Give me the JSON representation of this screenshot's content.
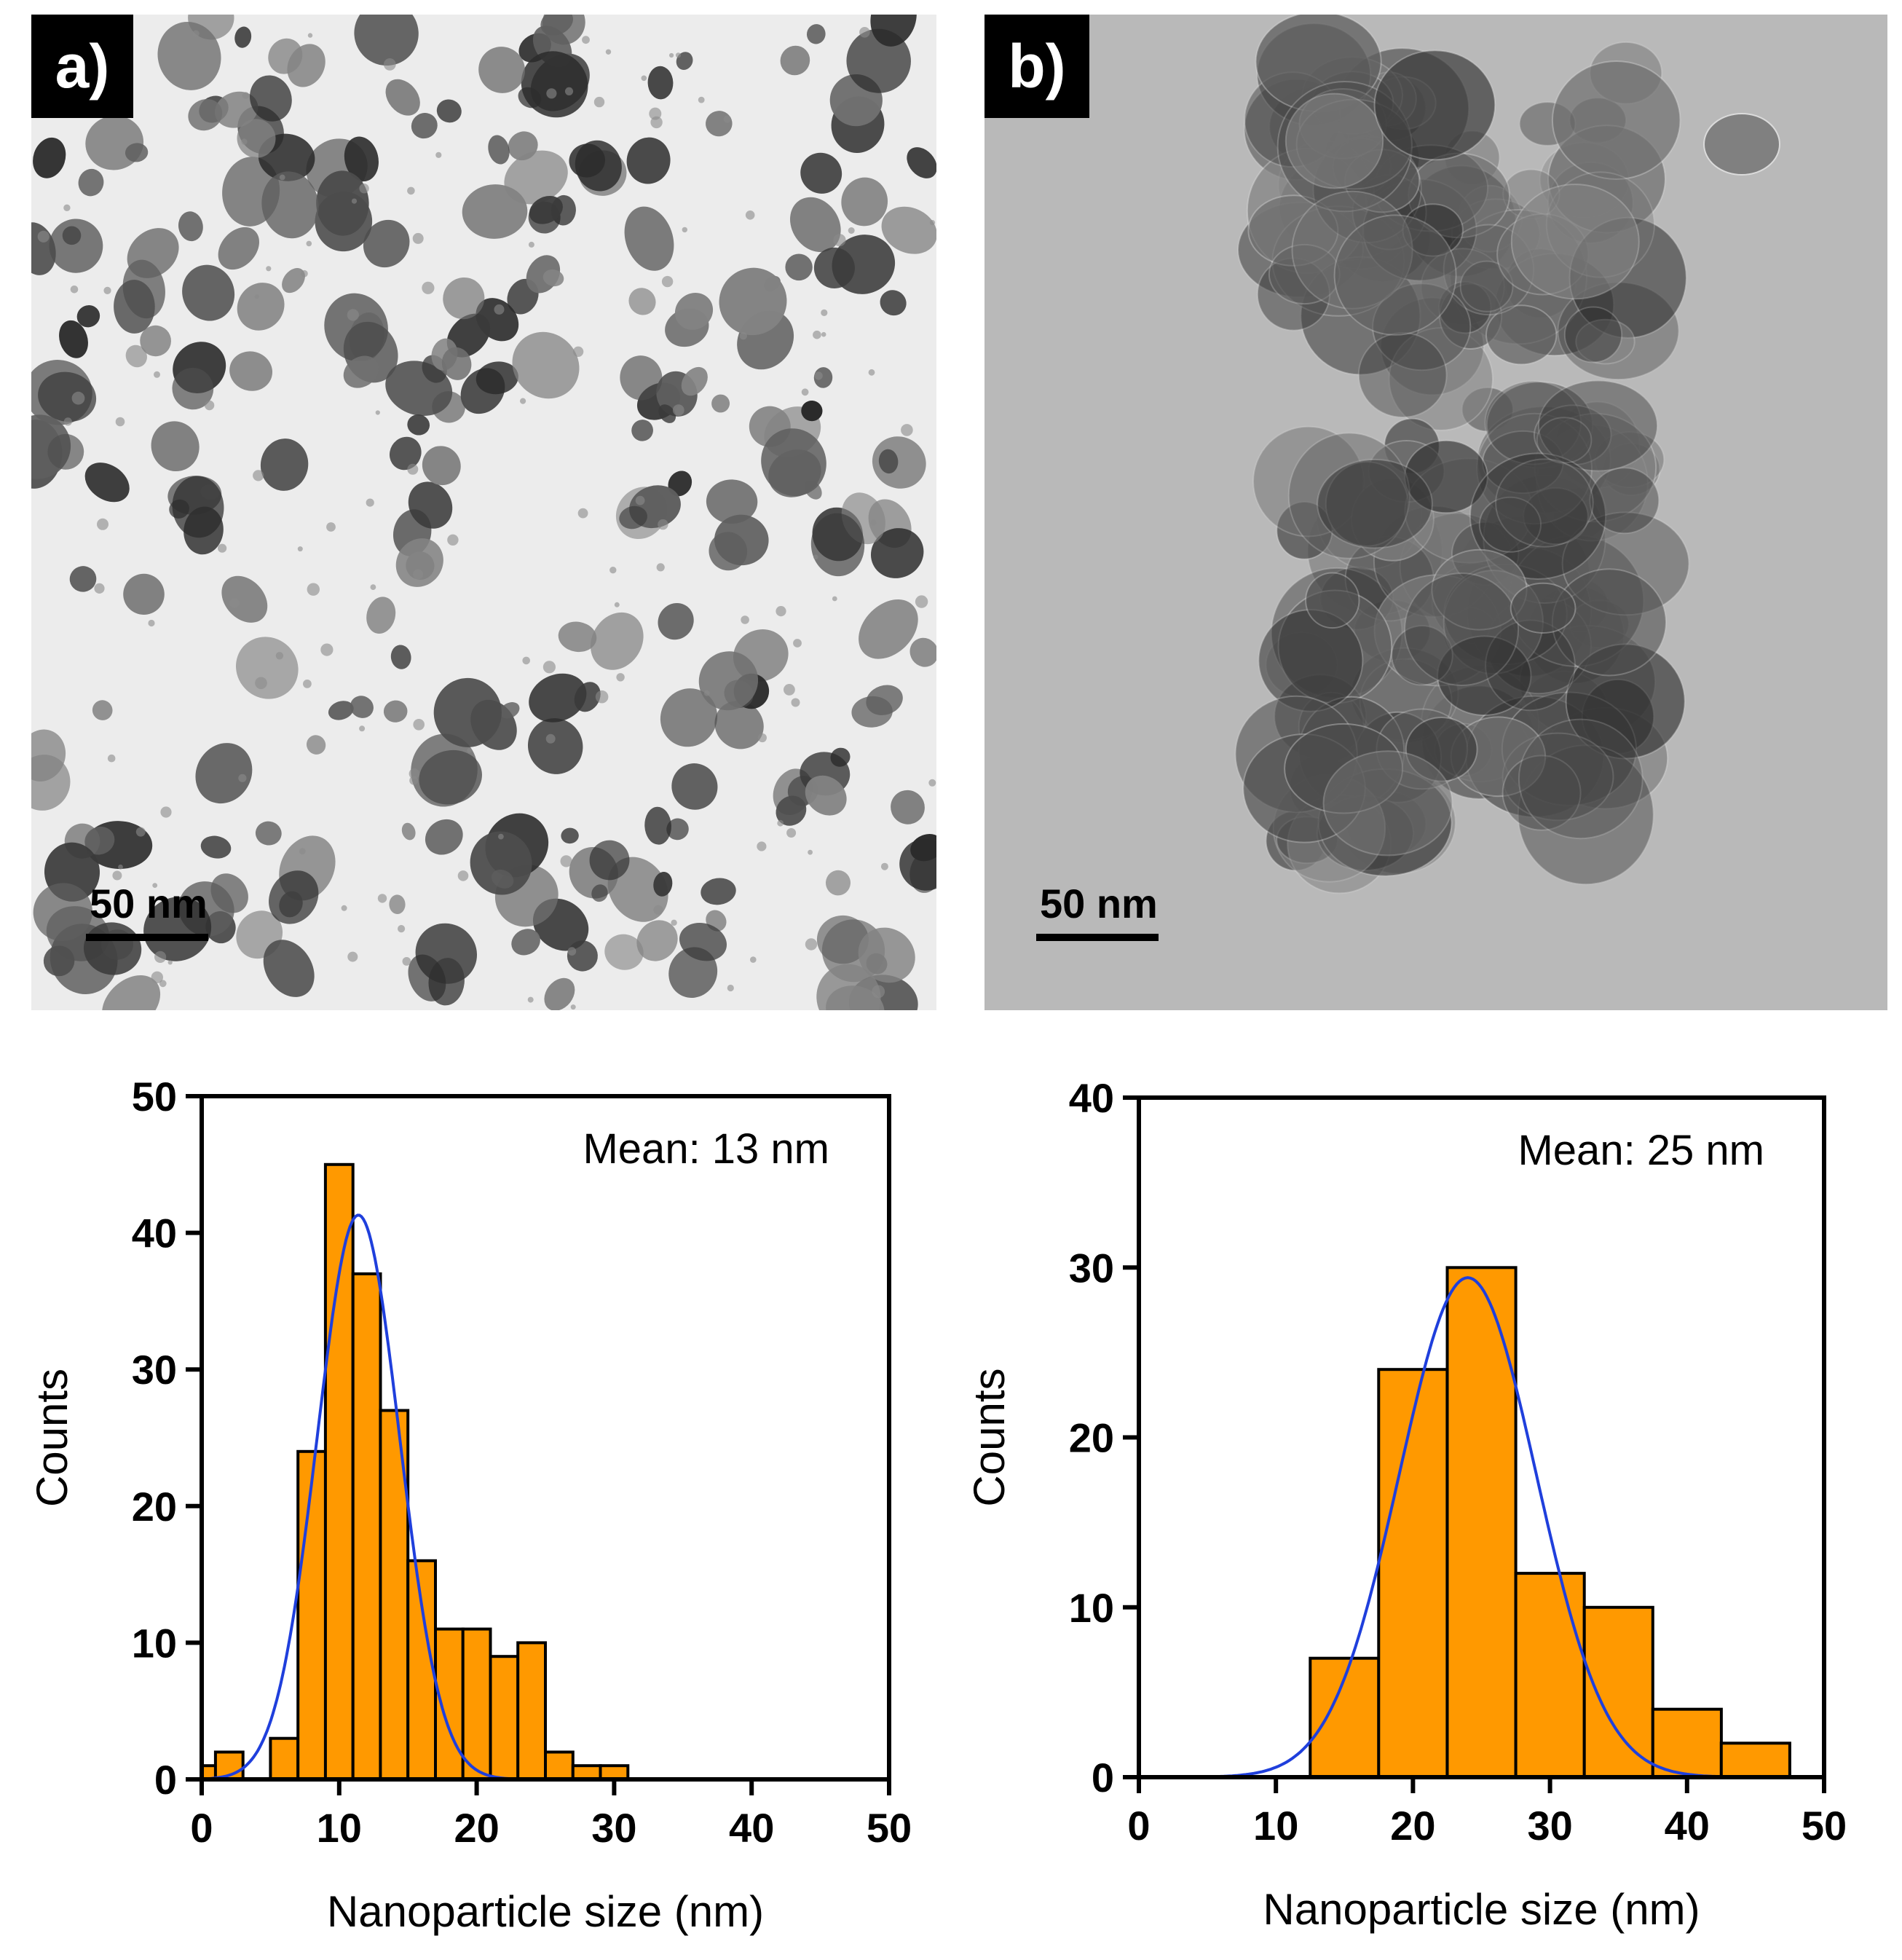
{
  "panels": [
    {
      "label": "a)",
      "scale_bar_text": "50 nm",
      "background_color": "#ececec",
      "particle_color": "#4a4a4a",
      "image_type": "tem-micrograph"
    },
    {
      "label": "b)",
      "scale_bar_text": "50 nm",
      "background_color": "#b9b9b9",
      "particle_color": "#3c3c3c",
      "image_type": "tem-micrograph"
    }
  ],
  "colors": {
    "bar_fill": "#ff9900",
    "bar_stroke": "#000000",
    "fit_line": "#1f3fdc",
    "axis": "#000000"
  },
  "chart_data": [
    {
      "type": "bar",
      "title": "",
      "annotation": "Mean: 13 nm",
      "xlabel": "Nanoparticle size (nm)",
      "ylabel": "Counts",
      "xlim": [
        0,
        50
      ],
      "ylim": [
        0,
        50
      ],
      "xticks": [
        0,
        10,
        20,
        30,
        40,
        50
      ],
      "yticks": [
        0,
        10,
        20,
        30,
        40,
        50
      ],
      "bin_width": 2,
      "bin_edges_start": [
        0,
        1,
        5,
        7,
        9,
        11,
        13,
        15,
        17,
        19,
        21,
        23,
        25,
        27,
        29
      ],
      "values": [
        1,
        2,
        3,
        24,
        45,
        37,
        27,
        16,
        11,
        11,
        9,
        10,
        2,
        1,
        1
      ],
      "fit": {
        "type": "gaussian",
        "peak": 41.3,
        "center": 11.4,
        "sigma": 3.0,
        "x_range": [
          0,
          28
        ]
      }
    },
    {
      "type": "bar",
      "title": "",
      "annotation": "Mean: 25 nm",
      "xlabel": "Nanoparticle size (nm)",
      "ylabel": "Counts",
      "xlim": [
        0,
        50
      ],
      "ylim": [
        0,
        40
      ],
      "xticks": [
        0,
        10,
        20,
        30,
        40,
        50
      ],
      "yticks": [
        0,
        10,
        20,
        30,
        40
      ],
      "bin_width": 5,
      "bin_edges_start": [
        12.5,
        17.5,
        22.5,
        27.5,
        32.5,
        37.5,
        42.5
      ],
      "values": [
        7,
        24,
        30,
        12,
        10,
        4,
        2
      ],
      "fit": {
        "type": "gaussian",
        "peak": 29.4,
        "center": 24.0,
        "sigma": 5.0,
        "x_range": [
          5,
          45
        ]
      }
    }
  ]
}
